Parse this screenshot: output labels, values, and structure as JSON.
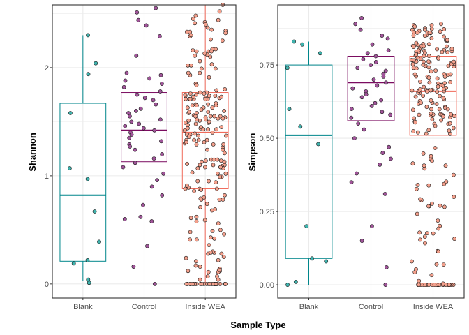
{
  "colors": {
    "Blank": "#00868B",
    "Control": "#7B0C60",
    "Inside WEA": "#F06A5A",
    "Blank_fill": "#3FB3AE",
    "Control_fill": "#A1559A",
    "Inside WEA_fill": "#F4A08C",
    "grid": "#EBEBEB",
    "panel_border": "#333333"
  },
  "chart_data": [
    {
      "type": "box",
      "categories": [
        "Blank",
        "Control",
        "Inside WEA"
      ],
      "xlabel": "Sample Type",
      "ylabel": "Shannon",
      "ylim": [
        -0.13,
        2.58
      ],
      "yticks": [
        0,
        1,
        2
      ],
      "ytick_labels": [
        "0",
        "1",
        "2"
      ],
      "grid": true,
      "legend": "none",
      "boxes": [
        {
          "category": "Blank",
          "min": 0.03,
          "q1": 0.21,
          "median": 0.82,
          "q3": 1.67,
          "max": 2.3
        },
        {
          "category": "Control",
          "min": 0.34,
          "q1": 1.13,
          "median": 1.42,
          "q3": 1.77,
          "max": 2.55
        },
        {
          "category": "Inside WEA",
          "min": 0.0,
          "q1": 0.88,
          "median": 1.4,
          "q3": 1.77,
          "max": 2.58
        }
      ],
      "points": [
        {
          "category": "Blank",
          "values": [
            2.3,
            2.04,
            1.94,
            1.58,
            1.07,
            0.97,
            0.67,
            0.39,
            0.22,
            0.19,
            0.04,
            0.01
          ]
        },
        {
          "category": "Control",
          "values": [
            2.55,
            2.51,
            2.44,
            2.39,
            2.29,
            2.11,
            1.95,
            1.93,
            1.9,
            1.88,
            1.85,
            1.82,
            1.78,
            1.75,
            1.72,
            1.7,
            1.66,
            1.62,
            1.6,
            1.58,
            1.55,
            1.52,
            1.5,
            1.48,
            1.46,
            1.44,
            1.42,
            1.4,
            1.38,
            1.35,
            1.32,
            1.29,
            1.27,
            1.24,
            1.2,
            1.16,
            1.12,
            1.08,
            1.02,
            0.96,
            0.9,
            0.82,
            0.73,
            0.62,
            0.6,
            0.58,
            0.35,
            0.16,
            0.0
          ]
        },
        {
          "category": "Inside WEA",
          "values": []
        }
      ]
    },
    {
      "type": "box",
      "categories": [
        "Blank",
        "Control",
        "Inside WEA"
      ],
      "xlabel": "Sample Type",
      "ylabel": "Simpson",
      "ylim": [
        -0.045,
        0.955
      ],
      "yticks": [
        0,
        0.25,
        0.5,
        0.75
      ],
      "ytick_labels": [
        "0.00",
        "0.25",
        "0.50",
        "0.75"
      ],
      "grid": true,
      "legend": "none",
      "boxes": [
        {
          "category": "Blank",
          "min": 0.0,
          "q1": 0.09,
          "median": 0.51,
          "q3": 0.75,
          "max": 0.83
        },
        {
          "category": "Control",
          "min": 0.25,
          "q1": 0.56,
          "median": 0.69,
          "q3": 0.78,
          "max": 0.91
        },
        {
          "category": "Inside WEA",
          "min": 0.12,
          "q1": 0.51,
          "median": 0.66,
          "q3": 0.78,
          "max": 0.89
        }
      ],
      "points": [
        {
          "category": "Blank",
          "values": [
            0.83,
            0.82,
            0.79,
            0.74,
            0.6,
            0.54,
            0.48,
            0.2,
            0.09,
            0.08,
            0.01,
            0.0
          ]
        },
        {
          "category": "Control",
          "values": [
            0.91,
            0.89,
            0.87,
            0.85,
            0.84,
            0.82,
            0.8,
            0.79,
            0.78,
            0.77,
            0.76,
            0.75,
            0.74,
            0.73,
            0.72,
            0.71,
            0.7,
            0.69,
            0.68,
            0.67,
            0.66,
            0.65,
            0.64,
            0.63,
            0.62,
            0.61,
            0.6,
            0.59,
            0.58,
            0.57,
            0.55,
            0.53,
            0.5,
            0.47,
            0.45,
            0.43,
            0.41,
            0.38,
            0.35,
            0.31,
            0.2,
            0.15,
            0.06,
            0.0
          ]
        },
        {
          "category": "Inside WEA",
          "values": []
        }
      ]
    }
  ]
}
